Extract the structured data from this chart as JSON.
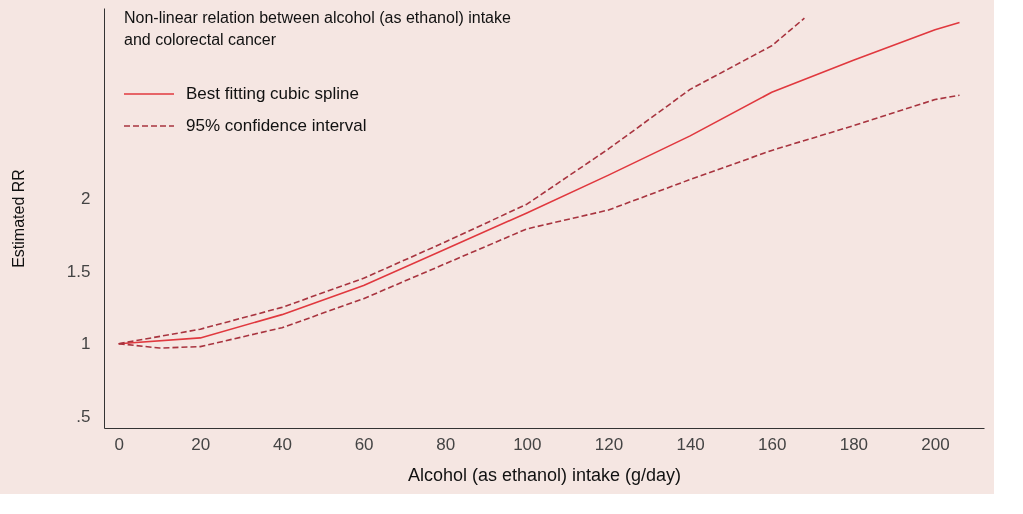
{
  "chart_data": {
    "type": "line",
    "title": "Non-linear relation between alcohol (as ethanol) intake\nand colorectal cancer",
    "xlabel": "Alcohol (as ethanol) intake (g/day)",
    "ylabel": "Estimated RR",
    "xlim": [
      -3.6,
      212
    ],
    "xticks": [
      0,
      20,
      40,
      60,
      80,
      100,
      120,
      140,
      160,
      180,
      200
    ],
    "ylim": [
      0.42,
      3.31
    ],
    "yticks": [
      {
        "value": 0.5,
        "label": ".5"
      },
      1,
      1.5,
      2
    ],
    "grid": false,
    "legend": "top left",
    "marker": "none",
    "series": [
      {
        "name": "Best fitting cubic spline",
        "color": "#e0383e",
        "line_style": "solid",
        "x": [
          0,
          20,
          40,
          60,
          80,
          100,
          120,
          140,
          160,
          180,
          200,
          206
        ],
        "values": [
          1.0,
          1.04,
          1.2,
          1.4,
          1.65,
          1.9,
          2.16,
          2.43,
          2.73,
          2.95,
          3.16,
          3.21
        ]
      },
      {
        "name": "95% confidence interval",
        "color": "#a8343f",
        "line_style": "dashed",
        "x": [
          0,
          20,
          40,
          60,
          80,
          100,
          120,
          140,
          160,
          168
        ],
        "values": [
          1.0,
          1.1,
          1.25,
          1.45,
          1.7,
          1.96,
          2.34,
          2.75,
          3.05,
          3.24
        ]
      },
      {
        "color": "#a8343f",
        "line_style": "dashed",
        "x": [
          0,
          10,
          20,
          40,
          60,
          80,
          100,
          120,
          140,
          160,
          180,
          200,
          206
        ],
        "values": [
          1.0,
          0.97,
          0.98,
          1.11,
          1.31,
          1.55,
          1.79,
          1.92,
          2.13,
          2.33,
          2.5,
          2.68,
          2.71
        ]
      }
    ]
  }
}
